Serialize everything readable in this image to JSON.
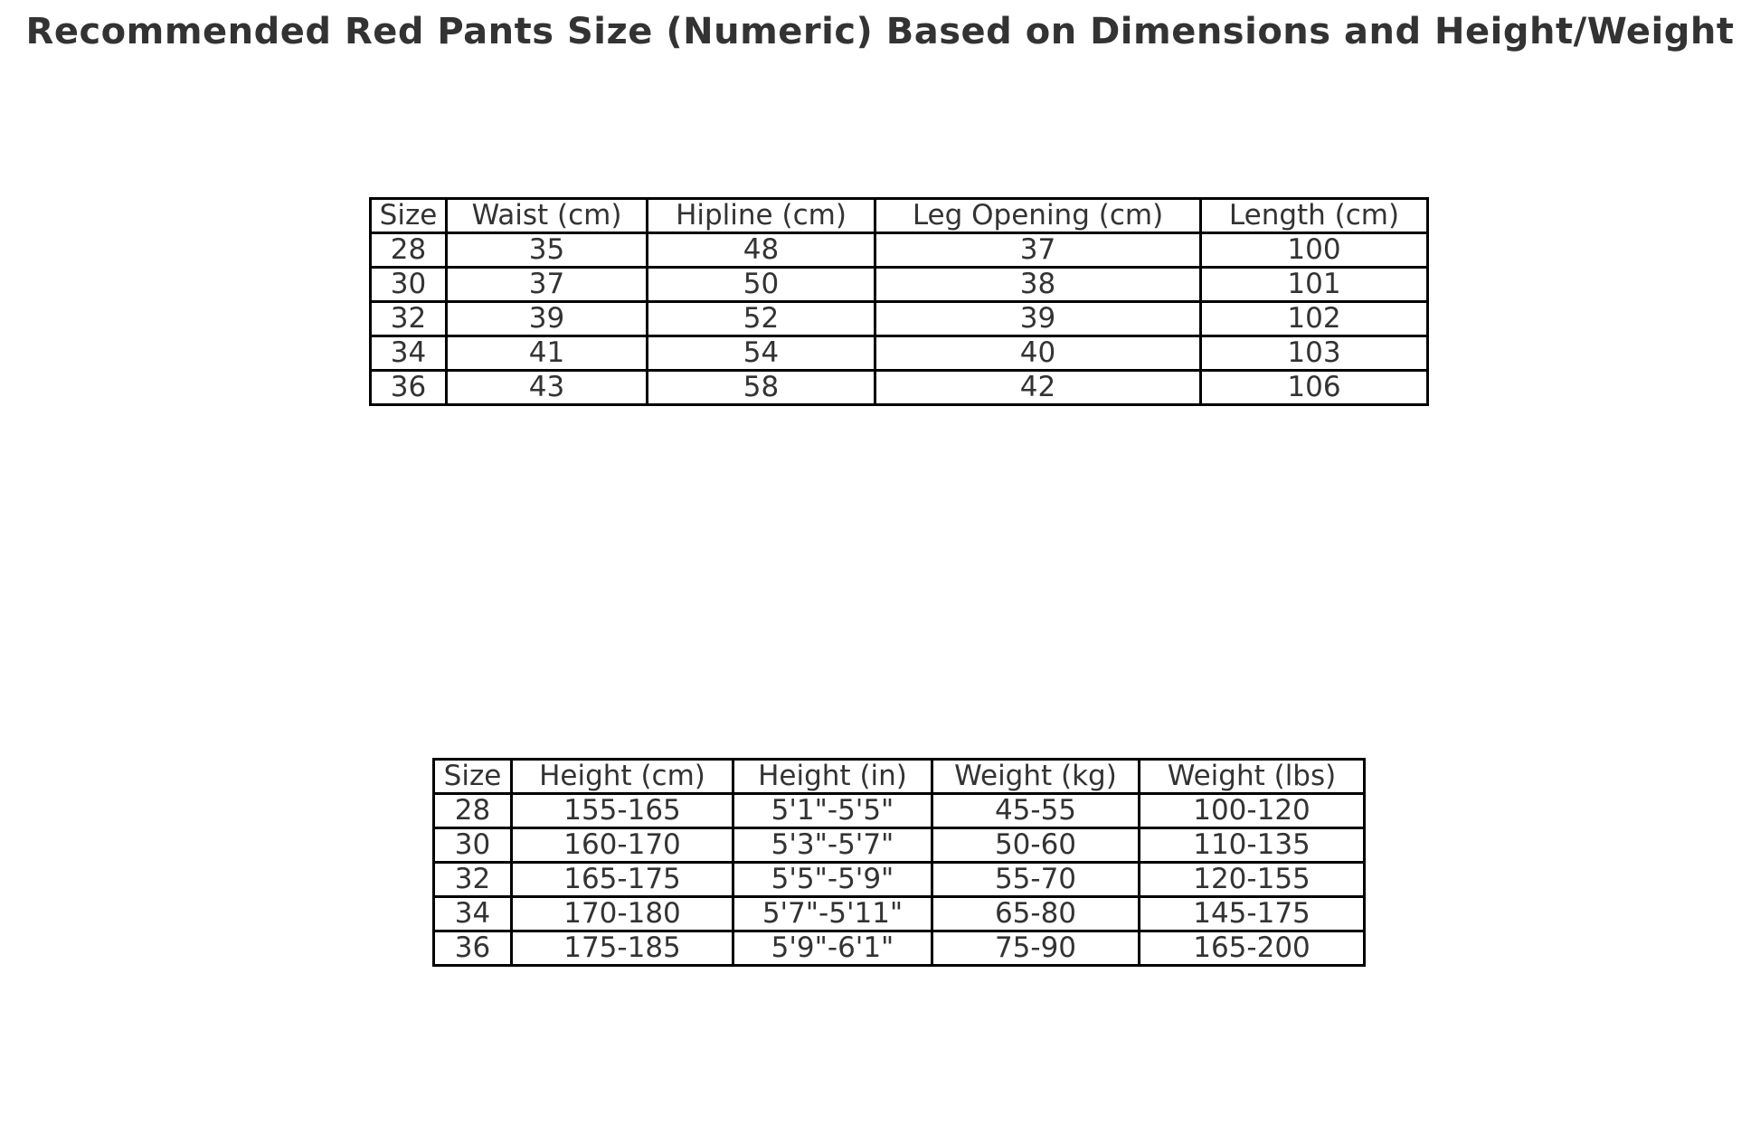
{
  "title": "Recommended Red Pants Size (Numeric) Based on Dimensions and Height/Weight",
  "colors": {
    "background": "#ffffff",
    "text": "#333333",
    "border": "#000000"
  },
  "chart_data": [
    {
      "type": "table",
      "name": "pants-dimensions",
      "columns": [
        "Size",
        "Waist (cm)",
        "Hipline (cm)",
        "Leg Opening (cm)",
        "Length (cm)"
      ],
      "rows": [
        [
          "28",
          "35",
          "48",
          "37",
          "100"
        ],
        [
          "30",
          "37",
          "50",
          "38",
          "101"
        ],
        [
          "32",
          "39",
          "52",
          "39",
          "102"
        ],
        [
          "34",
          "41",
          "54",
          "40",
          "103"
        ],
        [
          "36",
          "43",
          "58",
          "42",
          "106"
        ]
      ]
    },
    {
      "type": "table",
      "name": "height-weight-recommendations",
      "columns": [
        "Size",
        "Height (cm)",
        "Height (in)",
        "Weight (kg)",
        "Weight (lbs)"
      ],
      "rows": [
        [
          "28",
          "155-165",
          "5'1\"-5'5\"",
          "45-55",
          "100-120"
        ],
        [
          "30",
          "160-170",
          "5'3\"-5'7\"",
          "50-60",
          "110-135"
        ],
        [
          "32",
          "165-175",
          "5'5\"-5'9\"",
          "55-70",
          "120-155"
        ],
        [
          "34",
          "170-180",
          "5'7\"-5'11\"",
          "65-80",
          "145-175"
        ],
        [
          "36",
          "175-185",
          "5'9\"-6'1\"",
          "75-90",
          "165-200"
        ]
      ]
    }
  ]
}
